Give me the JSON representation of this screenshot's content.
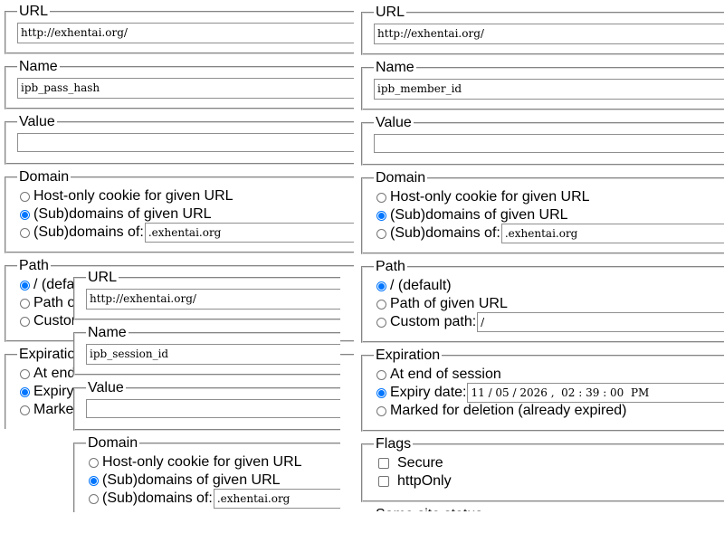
{
  "panels": [
    {
      "sections": [
        {
          "legend": "URL",
          "input": "http://exhentai.org/"
        },
        {
          "legend": "Name",
          "input": "ipb_pass_hash"
        },
        {
          "legend": "Value",
          "kind": "textarea"
        },
        {
          "legend": "Domain",
          "options": [
            {
              "label": "Host-only cookie for given URL",
              "checked": false
            },
            {
              "label": "(Sub)domains of given URL",
              "checked": true
            },
            {
              "label": "(Sub)domains of:",
              "checked": false,
              "input": ".exhentai.org"
            }
          ]
        },
        {
          "legend": "Path",
          "options": [
            {
              "label": "/ (default)",
              "checked": true
            },
            {
              "label": "Path of given URL",
              "checked": false
            },
            {
              "label": "Custom path:",
              "checked": false
            }
          ]
        },
        {
          "legend": "Expiration",
          "options": [
            {
              "label": "At end of session",
              "checked": false
            },
            {
              "label": "Expiry date:",
              "checked": true
            },
            {
              "label": "Marked for deletion (already expired)",
              "checked": false
            }
          ]
        }
      ]
    },
    {
      "sections": [
        {
          "legend": "URL",
          "input": "http://exhentai.org/"
        },
        {
          "legend": "Name",
          "input": "ipb_member_id"
        },
        {
          "legend": "Value",
          "kind": "textarea"
        },
        {
          "legend": "Domain",
          "options": [
            {
              "label": "Host-only cookie for given URL",
              "checked": false
            },
            {
              "label": "(Sub)domains of given URL",
              "checked": true
            },
            {
              "label": "(Sub)domains of:",
              "checked": false,
              "input": ".exhentai.org"
            }
          ]
        },
        {
          "legend": "Path",
          "options": [
            {
              "label": "/ (default)",
              "checked": true
            },
            {
              "label": "Path of given URL",
              "checked": false
            },
            {
              "label": "Custom path:",
              "checked": false,
              "input": "/"
            }
          ]
        },
        {
          "legend": "Expiration",
          "options": [
            {
              "label": "At end of session",
              "checked": false
            },
            {
              "label": "Expiry date:",
              "checked": true,
              "input": "11 / 05 / 2026 ,  02 : 39 : 00  PM"
            },
            {
              "label": "Marked for deletion (already expired)",
              "checked": false
            }
          ]
        },
        {
          "legend": "Flags",
          "kind": "checkbox",
          "options": [
            {
              "label": "Secure",
              "checked": false
            },
            {
              "label": "httpOnly",
              "checked": false
            }
          ]
        },
        {
          "legend": "Same site status",
          "kind": "cut"
        }
      ]
    },
    {
      "sections": [
        {
          "legend": "URL",
          "input": "http://exhentai.org/"
        },
        {
          "legend": "Name",
          "input": "ipb_session_id"
        },
        {
          "legend": "Value",
          "kind": "textarea"
        },
        {
          "legend": "Domain",
          "options": [
            {
              "label": "Host-only cookie for given URL",
              "checked": false
            },
            {
              "label": "(Sub)domains of given URL",
              "checked": true
            },
            {
              "label": "(Sub)domains of:",
              "checked": false,
              "input": ".exhentai.org"
            }
          ]
        }
      ]
    }
  ]
}
